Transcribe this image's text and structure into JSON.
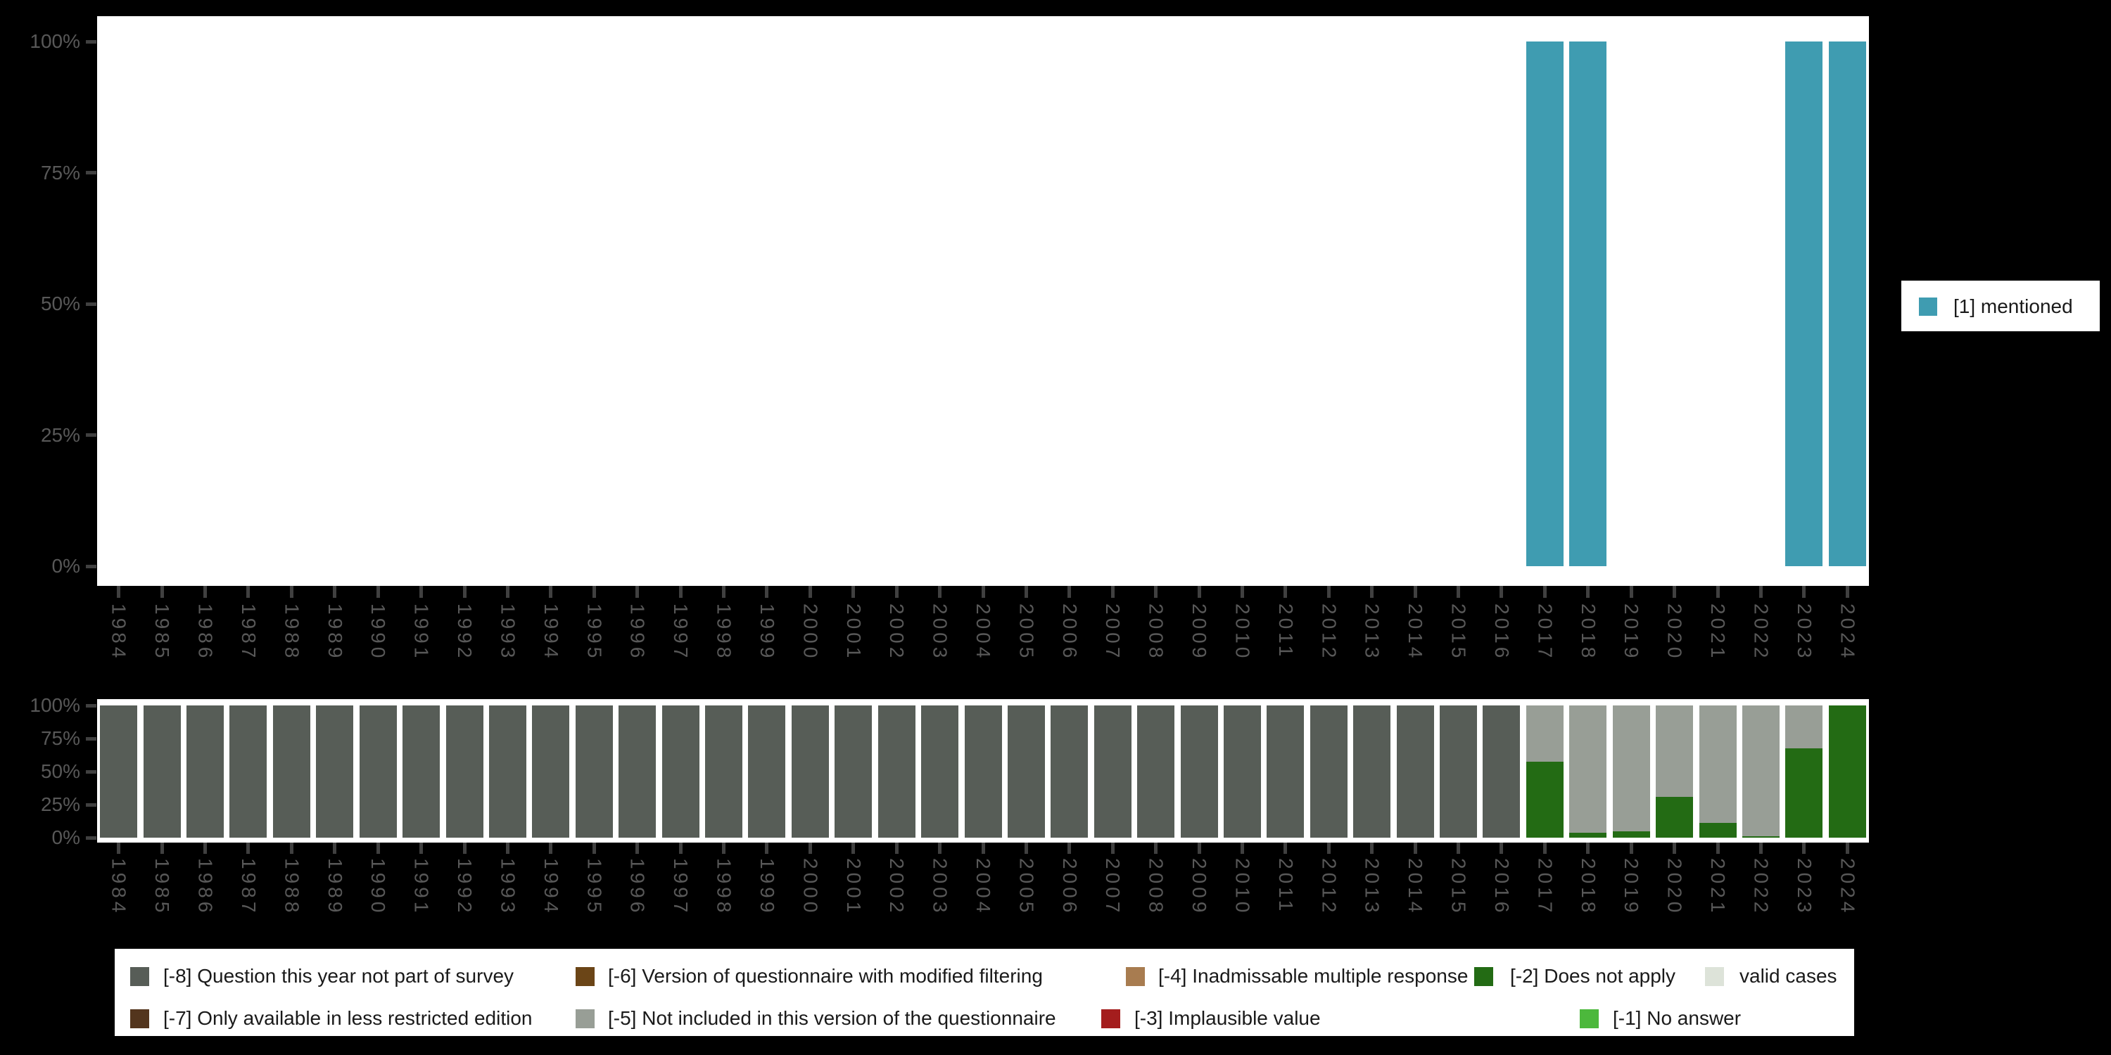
{
  "years": [
    "1984",
    "1985",
    "1986",
    "1987",
    "1988",
    "1989",
    "1990",
    "1991",
    "1992",
    "1993",
    "1994",
    "1995",
    "1996",
    "1997",
    "1998",
    "1999",
    "2000",
    "2001",
    "2002",
    "2003",
    "2004",
    "2005",
    "2006",
    "2007",
    "2008",
    "2009",
    "2010",
    "2011",
    "2012",
    "2013",
    "2014",
    "2015",
    "2016",
    "2017",
    "2018",
    "2019",
    "2020",
    "2021",
    "2022",
    "2023",
    "2024"
  ],
  "top_chart": {
    "y_ticks": [
      "100%",
      "75%",
      "50%",
      "25%",
      "0%"
    ],
    "legend_label": "[1] mentioned",
    "bar_color": "#3F9CB1"
  },
  "bottom_chart": {
    "y_ticks": [
      "100%",
      "75%",
      "50%",
      "25%",
      "0%"
    ]
  },
  "colors": {
    "background": "#000000",
    "plot_background": "#FFFFFF",
    "axis_text": "#585858",
    "tick": "#404040",
    "mentioned": "#3F9CB1",
    "missing_8": "#575D57",
    "missing_7": "#53351D",
    "missing_6": "#6B4517",
    "missing_5": "#989E96",
    "missing_4": "#A87C50",
    "missing_3": "#A41D1D",
    "missing_2": "#236B14",
    "missing_1": "#4CB83C",
    "valid_cases": "#DDE3D9"
  },
  "legend": {
    "items": [
      {
        "id": "missing_8",
        "label": "[-8] Question this year not part of survey",
        "color": "#575D57",
        "row": 0,
        "col": 0
      },
      {
        "id": "missing_6",
        "label": "[-6] Version of questionnaire with modified filtering",
        "color": "#6B4517",
        "row": 0,
        "col": 1
      },
      {
        "id": "missing_4",
        "label": "[-4] Inadmissable multiple response",
        "color": "#A87C50",
        "row": 0,
        "col": 2
      },
      {
        "id": "missing_2",
        "label": "[-2] Does not apply",
        "color": "#236B14",
        "row": 0,
        "col": 3
      },
      {
        "id": "valid_cases",
        "label": "valid cases",
        "color": "#DDE3D9",
        "row": 0,
        "col": 4
      },
      {
        "id": "missing_7",
        "label": "[-7] Only available in less restricted edition",
        "color": "#53351D",
        "row": 1,
        "col": 0
      },
      {
        "id": "missing_5",
        "label": "[-5] Not included in this version of the questionnaire",
        "color": "#989E96",
        "row": 1,
        "col": 1
      },
      {
        "id": "missing_3",
        "label": "[-3] Implausible value",
        "color": "#A41D1D",
        "row": 1,
        "col": 2
      },
      {
        "id": "missing_1",
        "label": "[-1] No answer",
        "color": "#4CB83C",
        "row": 1,
        "col": 3
      }
    ]
  },
  "chart_data": [
    {
      "type": "bar",
      "title": "",
      "x": [
        "1984",
        "1985",
        "1986",
        "1987",
        "1988",
        "1989",
        "1990",
        "1991",
        "1992",
        "1993",
        "1994",
        "1995",
        "1996",
        "1997",
        "1998",
        "1999",
        "2000",
        "2001",
        "2002",
        "2003",
        "2004",
        "2005",
        "2006",
        "2007",
        "2008",
        "2009",
        "2010",
        "2011",
        "2012",
        "2013",
        "2014",
        "2015",
        "2016",
        "2017",
        "2018",
        "2019",
        "2020",
        "2021",
        "2022",
        "2023",
        "2024"
      ],
      "series": [
        {
          "name": "[1] mentioned",
          "color": "#3F9CB1",
          "values": [
            0,
            0,
            0,
            0,
            0,
            0,
            0,
            0,
            0,
            0,
            0,
            0,
            0,
            0,
            0,
            0,
            0,
            0,
            0,
            0,
            0,
            0,
            0,
            0,
            0,
            0,
            0,
            0,
            0,
            0,
            0,
            0,
            0,
            100,
            100,
            0,
            0,
            0,
            0,
            100,
            100
          ]
        }
      ],
      "ylabel": "",
      "ylim": [
        0,
        100
      ],
      "y_tick_values": [
        0,
        25,
        50,
        75,
        100
      ],
      "grid": false,
      "legend_position": "right"
    },
    {
      "type": "stacked_bar",
      "title": "",
      "x": [
        "1984",
        "1985",
        "1986",
        "1987",
        "1988",
        "1989",
        "1990",
        "1991",
        "1992",
        "1993",
        "1994",
        "1995",
        "1996",
        "1997",
        "1998",
        "1999",
        "2000",
        "2001",
        "2002",
        "2003",
        "2004",
        "2005",
        "2006",
        "2007",
        "2008",
        "2009",
        "2010",
        "2011",
        "2012",
        "2013",
        "2014",
        "2015",
        "2016",
        "2017",
        "2018",
        "2019",
        "2020",
        "2021",
        "2022",
        "2023",
        "2024"
      ],
      "series": [
        {
          "name": "[-2] Does not apply",
          "color": "#236B14",
          "values": [
            0,
            0,
            0,
            0,
            0,
            0,
            0,
            0,
            0,
            0,
            0,
            0,
            0,
            0,
            0,
            0,
            0,
            0,
            0,
            0,
            0,
            0,
            0,
            0,
            0,
            0,
            0,
            0,
            0,
            0,
            0,
            0,
            0,
            57.5,
            3.5,
            5,
            31,
            11,
            1,
            67.5,
            100
          ]
        },
        {
          "name": "[-5] Not included in this version of the questionnaire",
          "color": "#989E96",
          "values": [
            0,
            0,
            0,
            0,
            0,
            0,
            0,
            0,
            0,
            0,
            0,
            0,
            0,
            0,
            0,
            0,
            0,
            0,
            0,
            0,
            0,
            0,
            0,
            0,
            0,
            0,
            0,
            0,
            0,
            0,
            0,
            0,
            0,
            42.5,
            96.5,
            95,
            69,
            89,
            99,
            32.5,
            0
          ]
        },
        {
          "name": "[-8] Question this year not part of survey",
          "color": "#575D57",
          "values": [
            100,
            100,
            100,
            100,
            100,
            100,
            100,
            100,
            100,
            100,
            100,
            100,
            100,
            100,
            100,
            100,
            100,
            100,
            100,
            100,
            100,
            100,
            100,
            100,
            100,
            100,
            100,
            100,
            100,
            100,
            100,
            100,
            100,
            0,
            0,
            0,
            0,
            0,
            0,
            0,
            0
          ]
        }
      ],
      "stack_order": "bottom-to-top",
      "ylabel": "",
      "ylim": [
        0,
        100
      ],
      "y_tick_values": [
        0,
        25,
        50,
        75,
        100
      ],
      "grid": false,
      "legend_position": "bottom"
    }
  ]
}
